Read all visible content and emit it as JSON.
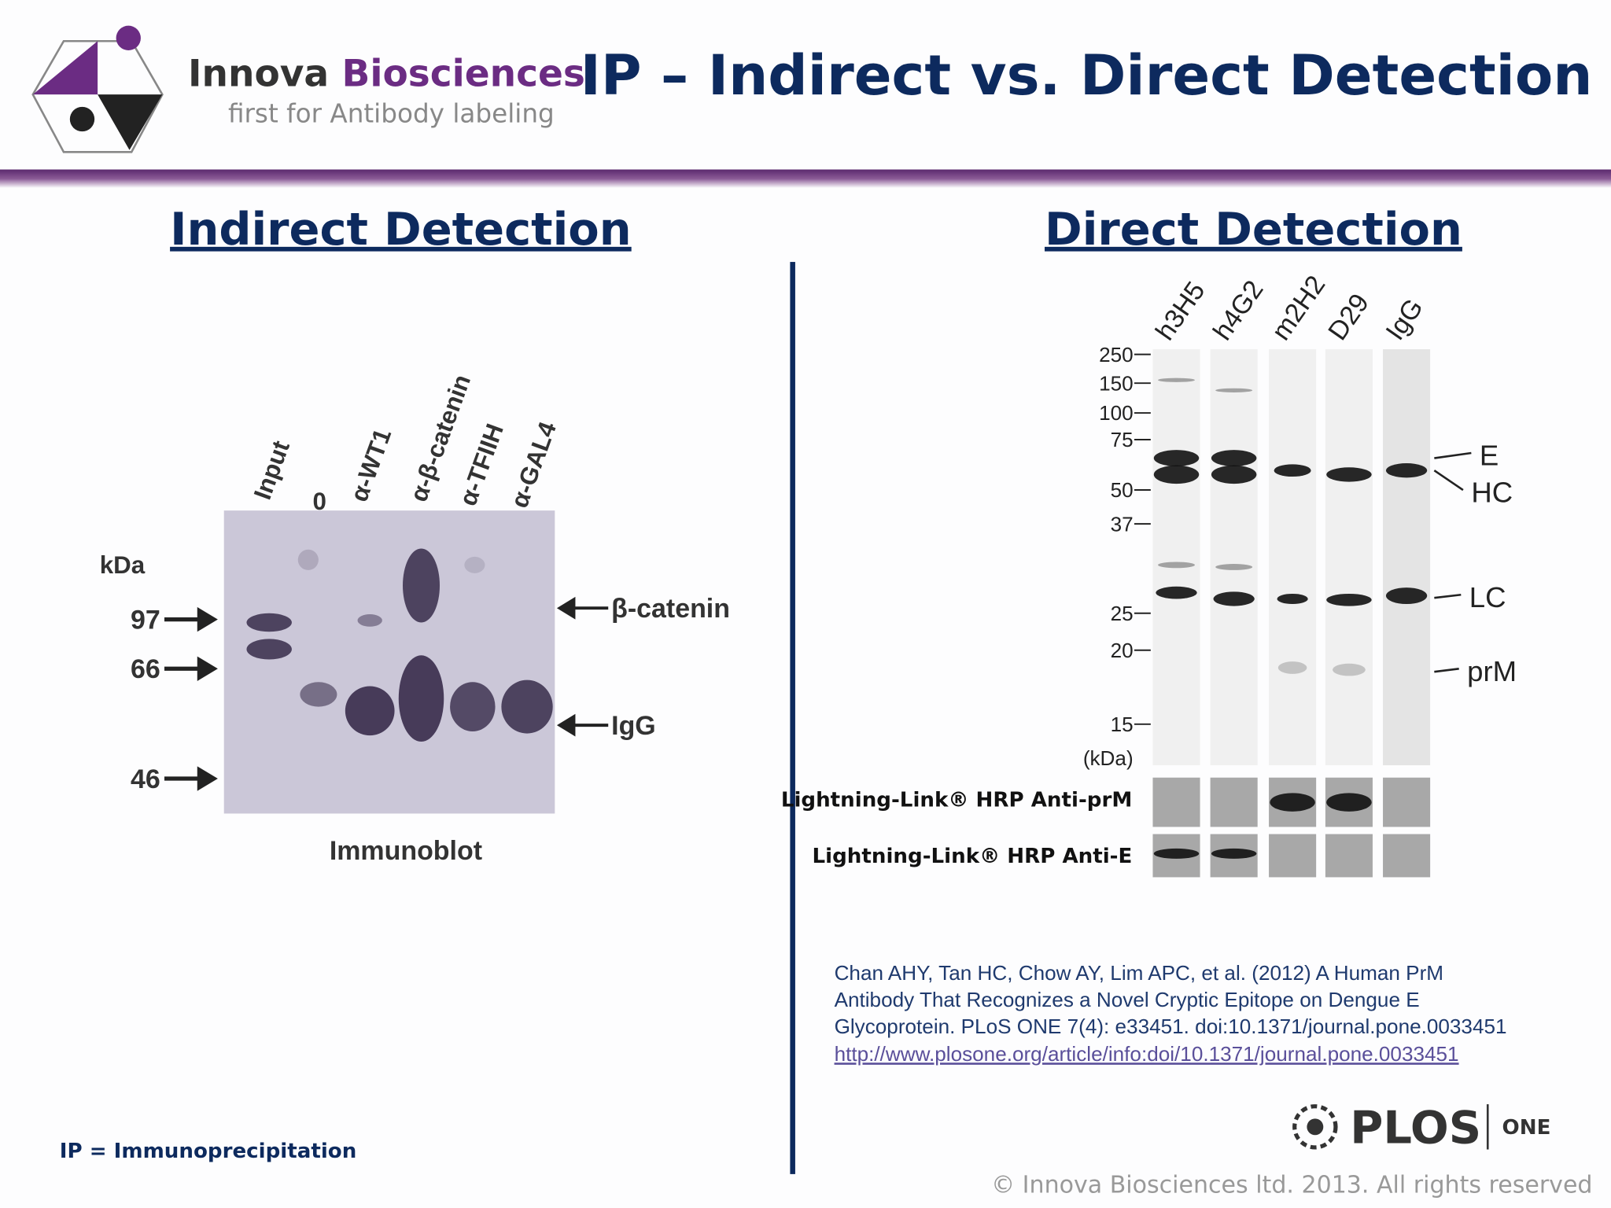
{
  "header": {
    "brand_1": "Innova",
    "brand_2": "Biosciences",
    "tagline": "first for Antibody labeling",
    "title": "IP – Indirect vs. Direct Detection"
  },
  "indirect": {
    "heading": "Indirect Detection",
    "lanes": [
      "Input",
      "0",
      "α-WT1",
      "α-β-catenin",
      "α-TFIIH",
      "α-GAL4"
    ],
    "unit": "kDa",
    "markers": [
      "97",
      "66",
      "46"
    ],
    "bands": [
      "β-catenin",
      "IgG"
    ],
    "caption": "Immunoblot"
  },
  "direct": {
    "heading": "Direct Detection",
    "lanes": [
      "h3H5",
      "h4G2",
      "m2H2",
      "D29",
      "IgG"
    ],
    "markers": [
      "250",
      "150",
      "100",
      "75",
      "50",
      "37",
      "25",
      "20",
      "15"
    ],
    "unit": "(kDa)",
    "bands": [
      "E",
      "HC",
      "LC",
      "prM"
    ],
    "rows": [
      "Lightning-Link® HRP Anti-prM",
      "Lightning-Link® HRP Anti-E"
    ]
  },
  "citation": {
    "lines": [
      "Chan AHY, Tan HC, Chow AY, Lim APC, et al. (2012) A Human PrM",
      "Antibody That Recognizes a Novel Cryptic Epitope on Dengue E",
      "Glycoprotein. PLoS ONE 7(4): e33451. doi:10.1371/journal.pone.0033451"
    ],
    "link": "http://www.plosone.org/article/info:doi/10.1371/journal.pone.0033451"
  },
  "footer": {
    "note": "IP = Immunoprecipitation",
    "plos": "PLOS",
    "one": "ONE",
    "copyright": "© Innova Biosciences ltd. 2013. All rights reserved"
  }
}
